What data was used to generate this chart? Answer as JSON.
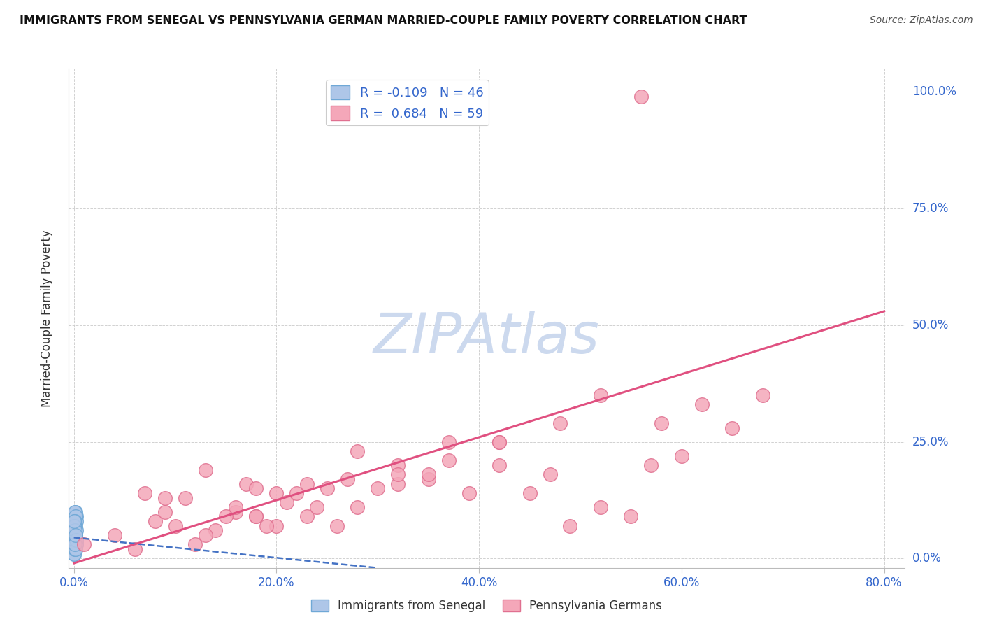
{
  "title": "IMMIGRANTS FROM SENEGAL VS PENNSYLVANIA GERMAN MARRIED-COUPLE FAMILY POVERTY CORRELATION CHART",
  "source": "Source: ZipAtlas.com",
  "ylabel": "Married-Couple Family Poverty",
  "xlim": [
    -0.005,
    0.82
  ],
  "ylim": [
    -0.02,
    1.05
  ],
  "xticks": [
    0.0,
    0.2,
    0.4,
    0.6,
    0.8
  ],
  "yticks": [
    0.0,
    0.25,
    0.5,
    0.75,
    1.0
  ],
  "xticklabels": [
    "0.0%",
    "20.0%",
    "40.0%",
    "60.0%",
    "80.0%"
  ],
  "yticklabels": [
    "0.0%",
    "25.0%",
    "50.0%",
    "75.0%",
    "100.0%"
  ],
  "blue_R": -0.109,
  "blue_N": 46,
  "pink_R": 0.684,
  "pink_N": 59,
  "blue_color": "#aec6e8",
  "blue_edge_color": "#6fa8d6",
  "pink_color": "#f4a7b9",
  "pink_edge_color": "#e07090",
  "blue_line_color": "#4472c4",
  "pink_line_color": "#e05080",
  "watermark_color": "#ccd9ee",
  "background_color": "#ffffff",
  "legend_label_blue": "Immigrants from Senegal",
  "legend_label_pink": "Pennsylvania Germans",
  "blue_scatter_x": [
    0.0005,
    0.001,
    0.0015,
    0.0005,
    0.001,
    0.002,
    0.0005,
    0.0015,
    0.0025,
    0.001,
    0.0005,
    0.0015,
    0.001,
    0.002,
    0.0005,
    0.001,
    0.0015,
    0.0005,
    0.001,
    0.0005,
    0.0015,
    0.001,
    0.002,
    0.0005,
    0.001,
    0.0015,
    0.0005,
    0.002,
    0.001,
    0.0005,
    0.0025,
    0.001,
    0.0015,
    0.0005,
    0.001,
    0.002,
    0.0005,
    0.001,
    0.0015,
    0.0005,
    0.001,
    0.0015,
    0.002,
    0.0005,
    0.001,
    0.0015
  ],
  "blue_scatter_y": [
    0.07,
    0.04,
    0.1,
    0.02,
    0.06,
    0.09,
    0.03,
    0.05,
    0.08,
    0.04,
    0.01,
    0.07,
    0.1,
    0.03,
    0.05,
    0.06,
    0.02,
    0.08,
    0.04,
    0.03,
    0.05,
    0.07,
    0.04,
    0.02,
    0.06,
    0.09,
    0.01,
    0.04,
    0.07,
    0.05,
    0.03,
    0.08,
    0.05,
    0.04,
    0.02,
    0.06,
    0.07,
    0.03,
    0.05,
    0.04,
    0.06,
    0.02,
    0.04,
    0.08,
    0.03,
    0.05
  ],
  "pink_scatter_x": [
    0.01,
    0.04,
    0.06,
    0.08,
    0.1,
    0.12,
    0.14,
    0.16,
    0.18,
    0.2,
    0.07,
    0.09,
    0.11,
    0.13,
    0.15,
    0.17,
    0.19,
    0.21,
    0.23,
    0.25,
    0.09,
    0.13,
    0.16,
    0.18,
    0.22,
    0.24,
    0.27,
    0.3,
    0.32,
    0.35,
    0.18,
    0.2,
    0.23,
    0.26,
    0.28,
    0.32,
    0.35,
    0.37,
    0.39,
    0.42,
    0.28,
    0.32,
    0.37,
    0.42,
    0.45,
    0.47,
    0.49,
    0.52,
    0.55,
    0.57,
    0.42,
    0.48,
    0.52,
    0.58,
    0.6,
    0.62,
    0.65,
    0.68,
    0.56
  ],
  "pink_scatter_y": [
    0.03,
    0.05,
    0.02,
    0.08,
    0.07,
    0.03,
    0.06,
    0.1,
    0.09,
    0.07,
    0.14,
    0.1,
    0.13,
    0.05,
    0.09,
    0.16,
    0.07,
    0.12,
    0.09,
    0.15,
    0.13,
    0.19,
    0.11,
    0.15,
    0.14,
    0.11,
    0.17,
    0.15,
    0.2,
    0.17,
    0.09,
    0.14,
    0.16,
    0.07,
    0.11,
    0.16,
    0.18,
    0.21,
    0.14,
    0.25,
    0.23,
    0.18,
    0.25,
    0.2,
    0.14,
    0.18,
    0.07,
    0.11,
    0.09,
    0.2,
    0.25,
    0.29,
    0.35,
    0.29,
    0.22,
    0.33,
    0.28,
    0.35,
    0.99
  ],
  "blue_line_x": [
    0.0,
    0.3
  ],
  "blue_line_y_start": 0.045,
  "blue_line_y_end": -0.02,
  "pink_line_x": [
    0.0,
    0.8
  ],
  "pink_line_y_start": -0.01,
  "pink_line_y_end": 0.53
}
